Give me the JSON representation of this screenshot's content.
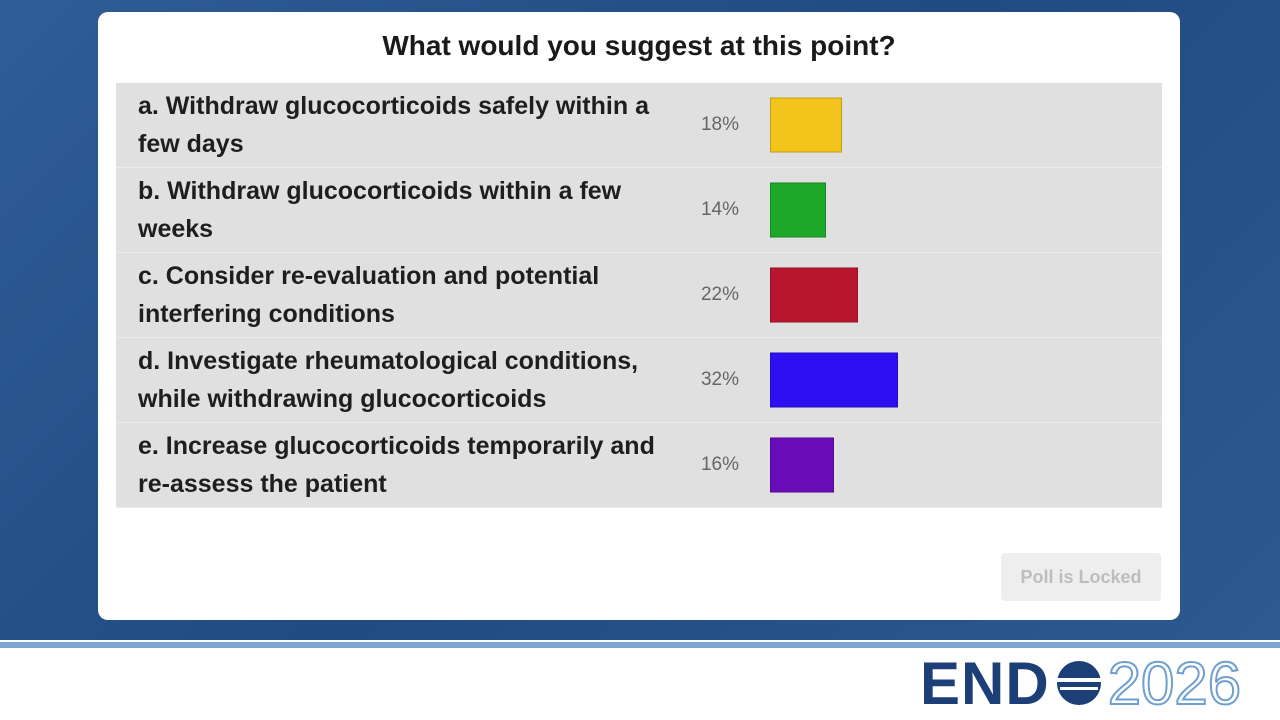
{
  "chart_data": {
    "type": "bar",
    "orientation": "horizontal",
    "title": "What would you suggest at this point?",
    "categories": [
      "a. Withdraw glucocorticoids safely within a few days",
      "b. Withdraw glucocorticoids within a few weeks",
      "c. Consider re-evaluation and potential interfering conditions",
      "d. Investigate rheumatological conditions, while withdrawing glucocorticoids",
      "e. Increase glucocorticoids temporarily and re-assess the patient"
    ],
    "values": [
      18,
      14,
      22,
      32,
      16
    ],
    "value_labels": [
      "18%",
      "14%",
      "22%",
      "32%",
      "16%"
    ],
    "colors": [
      "#f2c41c",
      "#1ea82a",
      "#b8162e",
      "#2d10f2",
      "#6a0cb8"
    ]
  },
  "button": "Poll is Locked",
  "logo": {
    "word": "END",
    "year": "2026"
  }
}
